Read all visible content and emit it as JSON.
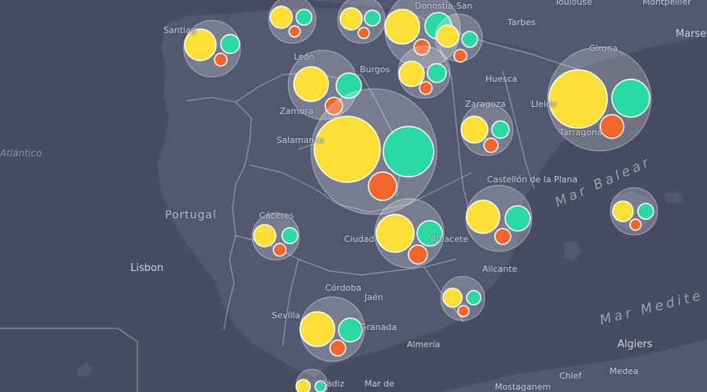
{
  "colors": {
    "background": "#474c62",
    "land": "#525870",
    "border": "#c7cad6",
    "cluster_fill": "rgba(255,255,255,0.22)",
    "yellow": "#fddf36",
    "green": "#2bd9a3",
    "orange": "#f2652b"
  },
  "places": {
    "toulouse": "Toulouse",
    "montpellier": "Montpellier",
    "marseille": "Marse",
    "tarbes": "Tarbes",
    "donostia": "Donostia-San",
    "burgos": "Burgos",
    "leon": "León",
    "santiago": "Santiag",
    "huesca": "Huesca",
    "zaragoza": "Zaragoza",
    "lleida": "Lleida",
    "girona": "Girona",
    "tarragona": "Tarragona",
    "zamora": "Zamora",
    "salamanca": "Salamanca",
    "castellon": "Castellón de la Plana",
    "mar_balear": "Mar Balear",
    "portugal": "Portugal",
    "atlantico": "Atlántico",
    "caceres": "Cáceres",
    "ciudad": "Ciudad",
    "albacete": "Albacete",
    "lisbon": "Lisbon",
    "alicante": "Alicante",
    "mar_med": "Mar Medite",
    "cordoba": "Córdoba",
    "jaen": "Jaén",
    "sevilla": "Sevilla",
    "granada": "Granada",
    "almeria": "Almería",
    "algiers": "Algiers",
    "medea": "Medea",
    "chlef": "Chlef",
    "mostaganem": "Mostaganem",
    "mar_de": "Mar de",
    "cadiz": "Cádiz"
  },
  "clusters": [
    {
      "id": "galicia"
    },
    {
      "id": "leon-asturias"
    },
    {
      "id": "cantabria"
    },
    {
      "id": "pais-vasco"
    },
    {
      "id": "navarra"
    },
    {
      "id": "la-rioja"
    },
    {
      "id": "castilla-leon"
    },
    {
      "id": "cataluna"
    },
    {
      "id": "aragon"
    },
    {
      "id": "madrid"
    },
    {
      "id": "extremadura"
    },
    {
      "id": "castilla-la-mancha"
    },
    {
      "id": "valencia"
    },
    {
      "id": "baleares"
    },
    {
      "id": "murcia"
    },
    {
      "id": "andalucia"
    },
    {
      "id": "cadiz-area"
    }
  ]
}
